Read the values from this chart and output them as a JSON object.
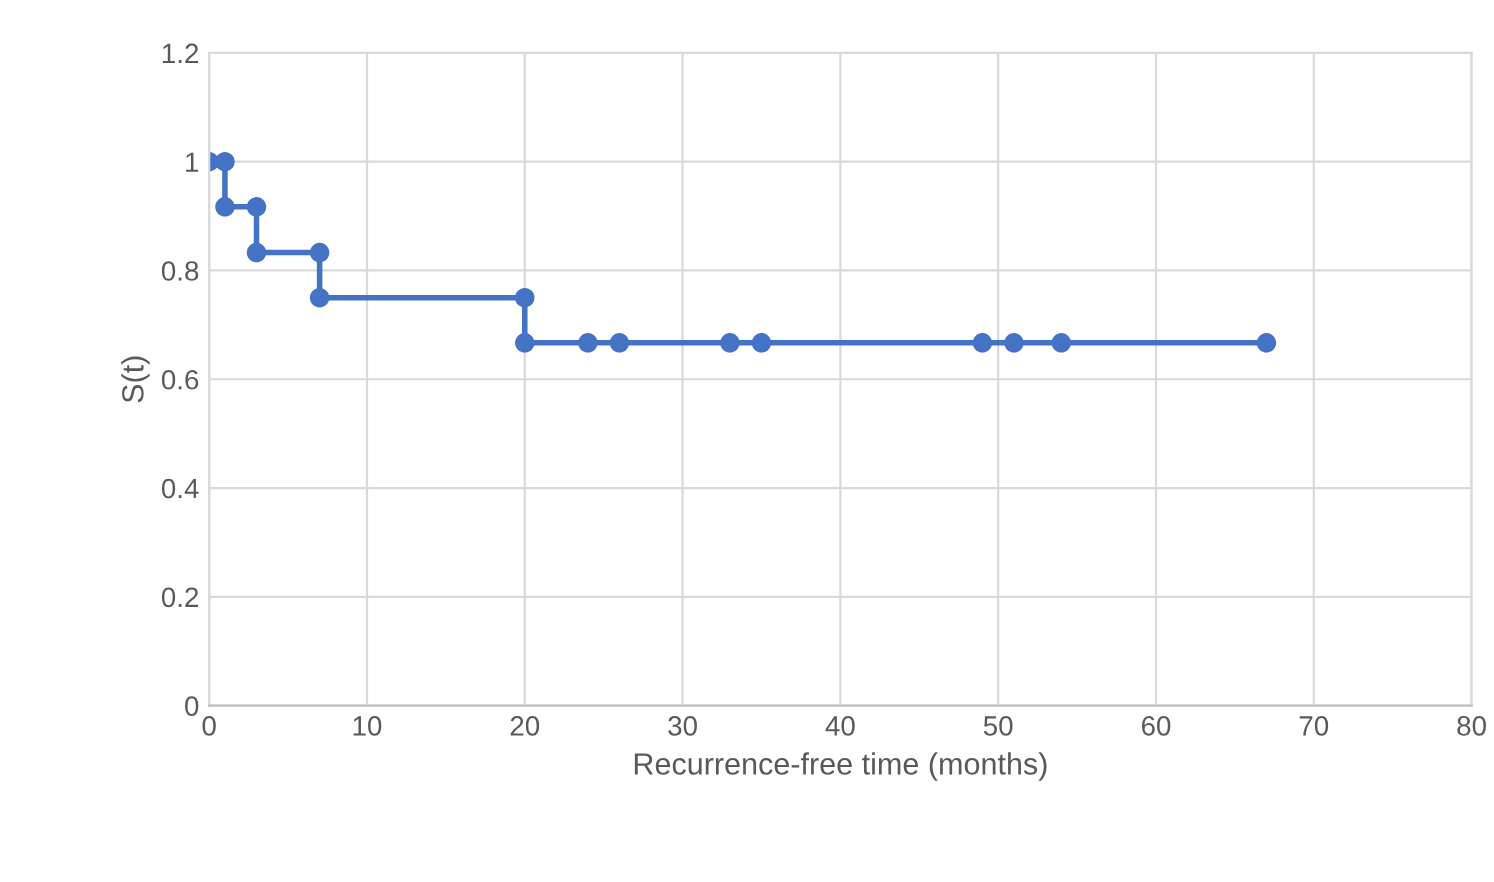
{
  "chart_data": {
    "type": "line",
    "xlabel": "Recurrence-free time (months)",
    "ylabel": "S(t)",
    "series": [
      {
        "color": "#4472c4",
        "x": [
          0,
          1,
          1,
          3,
          3,
          7,
          7,
          20,
          20,
          24,
          26,
          33,
          35,
          49,
          51,
          54,
          67
        ],
        "values": [
          1,
          1,
          0.917,
          0.917,
          0.833,
          0.833,
          0.75,
          0.75,
          0.667,
          0.667,
          0.667,
          0.667,
          0.667,
          0.667,
          0.667,
          0.667,
          0.667
        ]
      }
    ],
    "xlim": [
      0,
      80
    ],
    "xticks": [
      0,
      10,
      20,
      30,
      40,
      50,
      60,
      70,
      80
    ],
    "ylim": [
      0,
      1.2
    ],
    "yticks": [
      0,
      0.2,
      0.4,
      0.6,
      0.8,
      1,
      1.2
    ],
    "grid": true,
    "marker": "circle",
    "line_style": "solid"
  }
}
